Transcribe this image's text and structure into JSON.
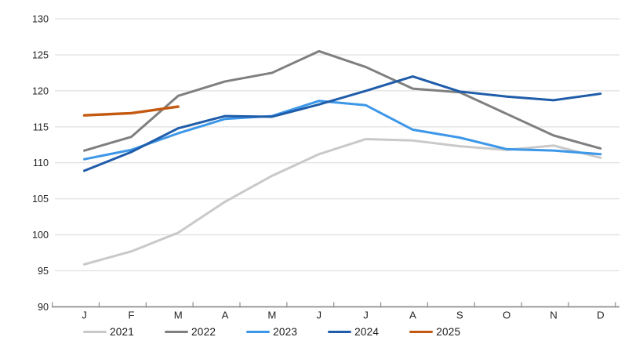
{
  "chart_data": {
    "type": "line",
    "title": "",
    "xlabel": "",
    "ylabel": "",
    "x_tick_labels": [
      "J",
      "F",
      "M",
      "A",
      "M",
      "J",
      "J",
      "A",
      "S",
      "O",
      "N",
      "D"
    ],
    "y_ticks": [
      90,
      95,
      100,
      105,
      110,
      115,
      120,
      125,
      130
    ],
    "ylim": [
      90,
      130
    ],
    "grid": "horizontal",
    "legend_position": "bottom",
    "series": [
      {
        "name": "2021",
        "color": "#C9C9C9",
        "values": [
          95.9,
          97.7,
          100.3,
          104.6,
          108.2,
          111.2,
          113.3,
          113.1,
          112.3,
          111.8,
          112.4,
          110.7
        ]
      },
      {
        "name": "2022",
        "color": "#7F7F7F",
        "values": [
          111.7,
          113.6,
          119.3,
          121.3,
          122.5,
          125.5,
          123.3,
          120.3,
          119.8,
          116.8,
          113.8,
          112.0
        ]
      },
      {
        "name": "2023",
        "color": "#3D97E8",
        "values": [
          110.5,
          111.8,
          114.1,
          116.1,
          116.5,
          118.6,
          118.0,
          114.6,
          113.5,
          111.9,
          111.7,
          111.2
        ]
      },
      {
        "name": "2024",
        "color": "#1F5CA9",
        "values": [
          108.9,
          111.5,
          114.8,
          116.5,
          116.4,
          118.1,
          120.0,
          122.0,
          119.9,
          119.2,
          118.7,
          119.6
        ]
      },
      {
        "name": "2025",
        "color": "#C45A11",
        "values": [
          116.6,
          116.9,
          117.8
        ]
      }
    ]
  },
  "colors": {
    "gridline": "#D9D9D9",
    "axis": "#8C8C8C",
    "tick_text": "#262626",
    "legend_text": "#1A1A1A"
  }
}
